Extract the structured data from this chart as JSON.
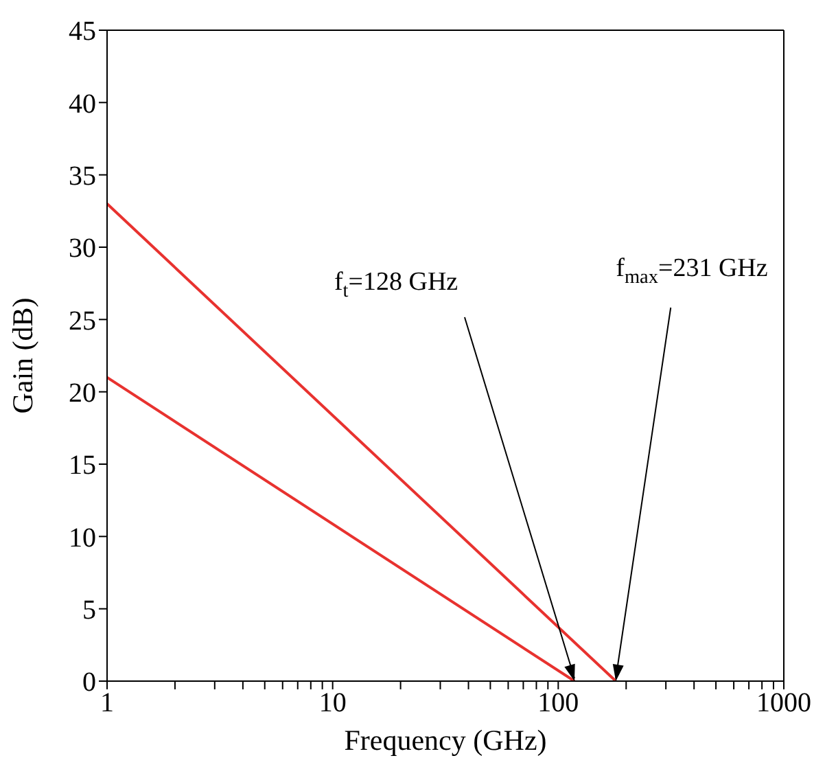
{
  "chart_data": {
    "type": "line",
    "xlabel": "Frequency (GHz)",
    "ylabel": "Gain (dB)",
    "log": "x",
    "xlim": [
      1,
      1000
    ],
    "xticks": [
      1,
      {
        "value": 2,
        "label": null
      },
      {
        "value": 3,
        "label": null
      },
      {
        "value": 4,
        "label": null
      },
      {
        "value": 5,
        "label": null
      },
      {
        "value": 6,
        "label": null
      },
      {
        "value": 7,
        "label": null
      },
      {
        "value": 8,
        "label": null
      },
      {
        "value": 9,
        "label": null
      },
      10,
      {
        "value": 20,
        "label": null
      },
      {
        "value": 30,
        "label": null
      },
      {
        "value": 40,
        "label": null
      },
      {
        "value": 50,
        "label": null
      },
      {
        "value": 60,
        "label": null
      },
      {
        "value": 70,
        "label": null
      },
      {
        "value": 80,
        "label": null
      },
      {
        "value": 90,
        "label": null
      },
      100,
      {
        "value": 200,
        "label": null
      },
      {
        "value": 300,
        "label": null
      },
      {
        "value": 400,
        "label": null
      },
      {
        "value": 500,
        "label": null
      },
      {
        "value": 600,
        "label": null
      },
      {
        "value": 700,
        "label": null
      },
      {
        "value": 800,
        "label": null
      },
      {
        "value": 900,
        "label": null
      },
      1000
    ],
    "ylim": [
      0,
      45
    ],
    "yticks": [
      0,
      5,
      10,
      15,
      20,
      25,
      30,
      35,
      40,
      45
    ],
    "marker": "none",
    "line_style": "solid",
    "series": [
      {
        "color": "#e8322f",
        "x": [
          1,
          180
        ],
        "values": [
          33,
          0
        ]
      },
      {
        "color": "#e8322f",
        "x": [
          1,
          118
        ],
        "values": [
          21,
          0
        ]
      }
    ],
    "annotations": [
      {
        "text": "f$_{t}$=128 GHz",
        "x": 118,
        "y": 0
      },
      {
        "text": "f$_{max}$=231 GHz",
        "x": 180,
        "y": 0
      }
    ]
  }
}
